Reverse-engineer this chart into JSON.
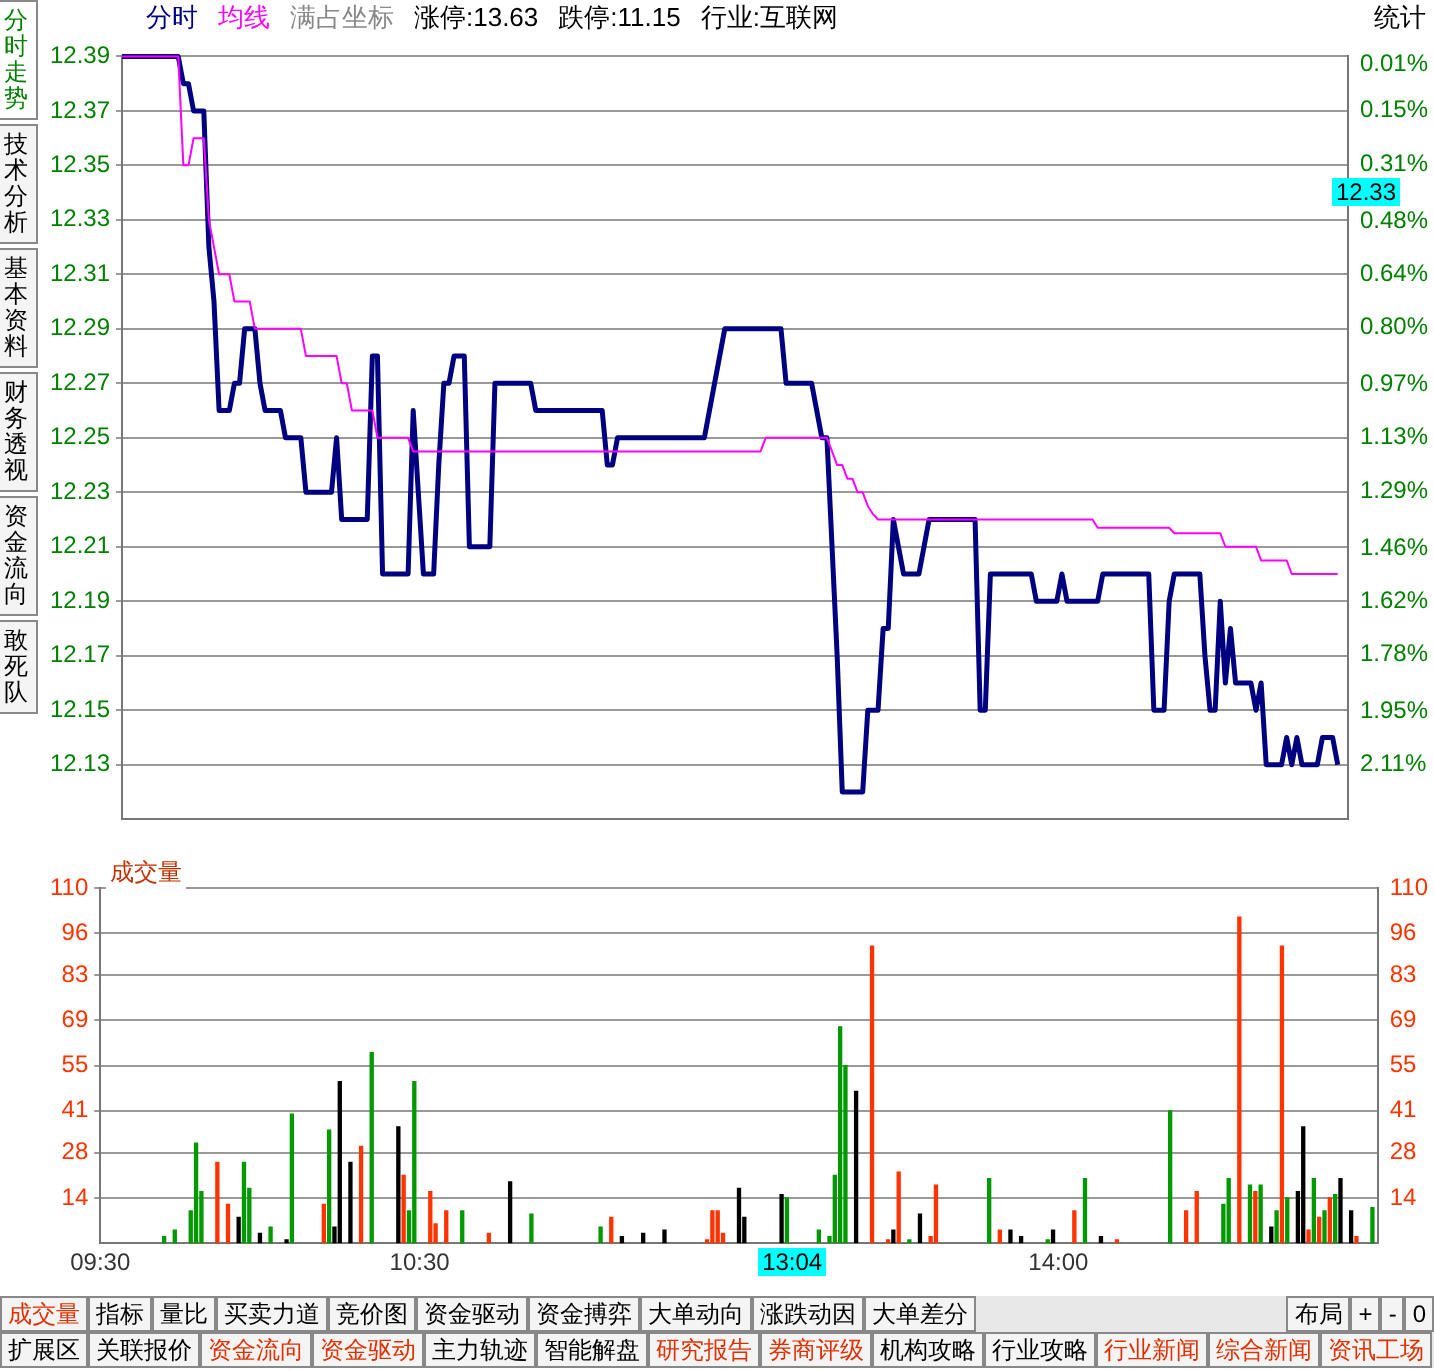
{
  "chart_data": [
    {
      "type": "line",
      "legend": "top left",
      "grid": "y",
      "categories": [
        null,
        null,
        null,
        null,
        null,
        null,
        null,
        null,
        null,
        null,
        null,
        null,
        null,
        null,
        null,
        null,
        null,
        null,
        null,
        null,
        null,
        null,
        null,
        null,
        null,
        null,
        null,
        null,
        null,
        null,
        null,
        null,
        null,
        null,
        null,
        null,
        null,
        null,
        null,
        null,
        null,
        null,
        null,
        null,
        null,
        null,
        null,
        null,
        null,
        null,
        null,
        null,
        null,
        null,
        null,
        null,
        null,
        null,
        null,
        null,
        null,
        null,
        null,
        null,
        null,
        null,
        null,
        null,
        null,
        null,
        null,
        null,
        null,
        null,
        null,
        null,
        null,
        null,
        null,
        null,
        null,
        null,
        null,
        null,
        null,
        null,
        null,
        null,
        null,
        null,
        null,
        null,
        null,
        null,
        null,
        null,
        null,
        null,
        null,
        null,
        null,
        null,
        null,
        null,
        null,
        null,
        null,
        null,
        null,
        null,
        null,
        null,
        null,
        null,
        null,
        null,
        null,
        null,
        null,
        null,
        null,
        null,
        null,
        null,
        null,
        null,
        null,
        null,
        null,
        null,
        null,
        null,
        null,
        null,
        null,
        null,
        null,
        null,
        null,
        null,
        null,
        null,
        null,
        null,
        null,
        null,
        null,
        null,
        null,
        null,
        null,
        null,
        null,
        null,
        null,
        null,
        null,
        null,
        null,
        null,
        null,
        null,
        null,
        null,
        null,
        null,
        null,
        null,
        null,
        null,
        null,
        null,
        null,
        null,
        null,
        null,
        null,
        null,
        null,
        null,
        null,
        null,
        null,
        null,
        null,
        null,
        null,
        null,
        null,
        null,
        null,
        null,
        null,
        null,
        null,
        null,
        null,
        null,
        null,
        null,
        null,
        null,
        null,
        null,
        null,
        null,
        null,
        null,
        null,
        null,
        null,
        null,
        null,
        null,
        null,
        null,
        null,
        null,
        null,
        null,
        null,
        null,
        null,
        null,
        null,
        null,
        null,
        null,
        null,
        null,
        null,
        null,
        null,
        null,
        null,
        null,
        null,
        null,
        null,
        null,
        null
      ],
      "series": [
        {
          "name": "分时",
          "color": "#000080",
          "values": [
            12.39,
            12.39,
            12.39,
            12.39,
            12.39,
            12.39,
            12.39,
            12.39,
            12.39,
            12.39,
            12.39,
            12.39,
            12.38,
            12.38,
            12.37,
            12.37,
            12.37,
            12.32,
            12.3,
            12.26,
            12.26,
            12.26,
            12.27,
            12.27,
            12.29,
            12.29,
            12.29,
            12.27,
            12.26,
            12.26,
            12.26,
            12.26,
            12.25,
            12.25,
            12.25,
            12.25,
            12.23,
            12.23,
            12.23,
            12.23,
            12.23,
            12.23,
            12.25,
            12.22,
            12.22,
            12.22,
            12.22,
            12.22,
            12.22,
            12.28,
            12.28,
            12.2,
            12.2,
            12.2,
            12.2,
            12.2,
            12.2,
            12.26,
            12.23,
            12.2,
            12.2,
            12.2,
            12.24,
            12.27,
            12.27,
            12.28,
            12.28,
            12.28,
            12.21,
            12.21,
            12.21,
            12.21,
            12.21,
            12.27,
            12.27,
            12.27,
            12.27,
            12.27,
            12.27,
            12.27,
            12.27,
            12.26,
            12.26,
            12.26,
            12.26,
            12.26,
            12.26,
            12.26,
            12.26,
            12.26,
            12.26,
            12.26,
            12.26,
            12.26,
            12.26,
            12.24,
            12.24,
            12.25,
            12.25,
            12.25,
            12.25,
            12.25,
            12.25,
            12.25,
            12.25,
            12.25,
            12.25,
            12.25,
            12.25,
            12.25,
            12.25,
            12.25,
            12.25,
            12.25,
            12.25,
            12.26,
            12.27,
            12.28,
            12.29,
            12.29,
            12.29,
            12.29,
            12.29,
            12.29,
            12.29,
            12.29,
            12.29,
            12.29,
            12.29,
            12.29,
            12.27,
            12.27,
            12.27,
            12.27,
            12.27,
            12.27,
            12.26,
            12.25,
            12.25,
            12.21,
            12.17,
            12.12,
            12.12,
            12.12,
            12.12,
            12.12,
            12.15,
            12.15,
            12.15,
            12.18,
            12.18,
            12.22,
            12.21,
            12.2,
            12.2,
            12.2,
            12.2,
            12.21,
            12.22,
            12.22,
            12.22,
            12.22,
            12.22,
            12.22,
            12.22,
            12.22,
            12.22,
            12.22,
            12.15,
            12.15,
            12.2,
            12.2,
            12.2,
            12.2,
            12.2,
            12.2,
            12.2,
            12.2,
            12.2,
            12.19,
            12.19,
            12.19,
            12.19,
            12.19,
            12.2,
            12.19,
            12.19,
            12.19,
            12.19,
            12.19,
            12.19,
            12.19,
            12.2,
            12.2,
            12.2,
            12.2,
            12.2,
            12.2,
            12.2,
            12.2,
            12.2,
            12.2,
            12.15,
            12.15,
            12.15,
            12.19,
            12.2,
            12.2,
            12.2,
            12.2,
            12.2,
            12.2,
            12.17,
            12.15,
            12.15,
            12.19,
            12.16,
            12.18,
            12.16,
            12.16,
            12.16,
            12.16,
            12.15,
            12.16,
            12.13,
            12.13,
            12.13,
            12.13,
            12.14,
            12.13,
            12.14,
            12.13,
            12.13,
            12.13,
            12.13,
            12.14,
            12.14,
            12.14,
            12.13,
            null,
            null
          ]
        },
        {
          "name": "均线",
          "color": "#ff00ff",
          "values": [
            12.39,
            12.39,
            12.39,
            12.39,
            12.39,
            12.39,
            12.39,
            12.39,
            12.39,
            12.39,
            12.39,
            12.39,
            12.35,
            12.35,
            12.36,
            12.36,
            12.36,
            12.33,
            12.32,
            12.31,
            12.31,
            12.31,
            12.3,
            12.3,
            12.3,
            12.3,
            12.29,
            12.29,
            12.29,
            12.29,
            12.29,
            12.29,
            12.29,
            12.29,
            12.29,
            12.29,
            12.28,
            12.28,
            12.28,
            12.28,
            12.28,
            12.28,
            12.28,
            12.27,
            12.27,
            12.26,
            12.26,
            12.26,
            12.26,
            12.26,
            12.25,
            12.25,
            12.25,
            12.25,
            12.25,
            12.25,
            12.25,
            12.245,
            12.245,
            12.245,
            12.245,
            12.245,
            12.245,
            12.245,
            12.245,
            12.245,
            12.245,
            12.245,
            12.245,
            12.245,
            12.245,
            12.245,
            12.245,
            12.245,
            12.245,
            12.245,
            12.245,
            12.245,
            12.245,
            12.245,
            12.245,
            12.245,
            12.245,
            12.245,
            12.245,
            12.245,
            12.245,
            12.245,
            12.245,
            12.245,
            12.245,
            12.245,
            12.245,
            12.245,
            12.245,
            12.245,
            12.245,
            12.245,
            12.245,
            12.245,
            12.245,
            12.245,
            12.245,
            12.245,
            12.245,
            12.245,
            12.245,
            12.245,
            12.245,
            12.245,
            12.245,
            12.245,
            12.245,
            12.245,
            12.245,
            12.245,
            12.245,
            12.245,
            12.245,
            12.245,
            12.245,
            12.245,
            12.245,
            12.245,
            12.245,
            12.245,
            12.25,
            12.25,
            12.25,
            12.25,
            12.25,
            12.25,
            12.25,
            12.25,
            12.25,
            12.25,
            12.25,
            12.25,
            12.25,
            12.245,
            12.24,
            12.24,
            12.235,
            12.235,
            12.23,
            12.23,
            12.225,
            12.222,
            12.22,
            12.22,
            12.22,
            12.22,
            12.22,
            12.22,
            12.22,
            12.22,
            12.22,
            12.22,
            12.22,
            12.22,
            12.22,
            12.22,
            12.22,
            12.22,
            12.22,
            12.22,
            12.22,
            12.22,
            12.22,
            12.22,
            12.22,
            12.22,
            12.22,
            12.22,
            12.22,
            12.22,
            12.22,
            12.22,
            12.22,
            12.22,
            12.22,
            12.22,
            12.22,
            12.22,
            12.22,
            12.22,
            12.22,
            12.22,
            12.22,
            12.22,
            12.22,
            12.217,
            12.217,
            12.217,
            12.217,
            12.217,
            12.217,
            12.217,
            12.217,
            12.217,
            12.217,
            12.217,
            12.217,
            12.217,
            12.217,
            12.217,
            12.215,
            12.215,
            12.215,
            12.215,
            12.215,
            12.215,
            12.215,
            12.215,
            12.215,
            12.215,
            12.21,
            12.21,
            12.21,
            12.21,
            12.21,
            12.21,
            12.21,
            12.205,
            12.205,
            12.205,
            12.205,
            12.205,
            12.205,
            12.2,
            12.2,
            12.2,
            12.2,
            12.2,
            12.2,
            12.2,
            12.2,
            12.2,
            12.2,
            null,
            null
          ]
        }
      ],
      "ylim": [
        12.11,
        12.39
      ],
      "yticks": [
        12.13,
        12.15,
        12.17,
        12.19,
        12.21,
        12.23,
        12.25,
        12.27,
        12.29,
        12.31,
        12.33,
        12.35,
        12.37,
        12.39
      ],
      "y2lim": [
        2.273,
        -0.013
      ],
      "y2ticks": [
        {
          "value": 0.01,
          "label": "0.01%"
        },
        {
          "value": 0.15,
          "label": "0.15%"
        },
        {
          "value": 0.31,
          "label": "0.31%"
        },
        {
          "value": 0.48,
          "label": "0.48%"
        },
        {
          "value": 0.64,
          "label": "0.64%"
        },
        {
          "value": 0.8,
          "label": "0.80%"
        },
        {
          "value": 0.97,
          "label": "0.97%"
        },
        {
          "value": 1.13,
          "label": "1.13%"
        },
        {
          "value": 1.29,
          "label": "1.29%"
        },
        {
          "value": 1.46,
          "label": "1.46%"
        },
        {
          "value": 1.62,
          "label": "1.62%"
        },
        {
          "value": 1.78,
          "label": "1.78%"
        },
        {
          "value": 1.95,
          "label": "1.95%"
        },
        {
          "value": 2.11,
          "label": "2.11%"
        }
      ],
      "annotations": [
        "12.33",
        "满占坐标",
        "涨停:13.63",
        "跌停:11.15",
        "行业:互联网",
        "统计"
      ]
    },
    {
      "type": "bar",
      "title": "成交量",
      "grid": "y",
      "categories": [
        "09:30",
        null,
        null,
        null,
        null,
        null,
        null,
        null,
        null,
        null,
        null,
        null,
        null,
        null,
        null,
        null,
        null,
        null,
        null,
        null,
        null,
        null,
        null,
        null,
        null,
        null,
        null,
        null,
        null,
        null,
        null,
        null,
        null,
        null,
        null,
        null,
        null,
        null,
        null,
        null,
        null,
        null,
        null,
        null,
        null,
        null,
        null,
        null,
        null,
        null,
        null,
        null,
        null,
        null,
        null,
        null,
        null,
        null,
        null,
        null,
        "10:30",
        null,
        null,
        null,
        null,
        null,
        null,
        null,
        null,
        null,
        null,
        null,
        null,
        null,
        null,
        null,
        null,
        null,
        null,
        null,
        null,
        null,
        null,
        null,
        null,
        null,
        null,
        null,
        null,
        null,
        null,
        null,
        null,
        null,
        null,
        null,
        null,
        null,
        null,
        null,
        null,
        null,
        null,
        null,
        null,
        null,
        null,
        null,
        null,
        null,
        null,
        null,
        null,
        null,
        null,
        null,
        null,
        null,
        null,
        null,
        null,
        null,
        null,
        null,
        null,
        null,
        null,
        null,
        null,
        null,
        null,
        null,
        null,
        null,
        null,
        null,
        null,
        null,
        null,
        null,
        null,
        null,
        null,
        null,
        null,
        null,
        null,
        null,
        null,
        null,
        null,
        null,
        null,
        null,
        null,
        null,
        null,
        null,
        null,
        null,
        null,
        null,
        null,
        null,
        null,
        null,
        null,
        null,
        null,
        null,
        null,
        null,
        null,
        null,
        null,
        null,
        null,
        null,
        null,
        null,
        "14:00",
        null,
        null,
        null,
        null,
        null,
        null,
        null,
        null,
        null,
        null,
        null,
        null,
        null,
        null,
        null,
        null,
        null,
        null,
        null,
        null,
        null,
        null,
        null,
        null,
        null,
        null,
        null,
        null,
        null,
        null,
        null,
        null,
        null,
        null,
        null,
        null,
        null,
        null,
        null,
        null,
        null,
        null,
        null,
        null,
        null,
        null,
        null,
        null,
        null,
        null,
        null,
        null,
        null,
        null,
        null,
        null,
        null,
        null,
        null,
        null
      ],
      "values": [
        null,
        null,
        null,
        null,
        null,
        null,
        null,
        null,
        null,
        null,
        null,
        null,
        2,
        null,
        4,
        null,
        null,
        10,
        31,
        16,
        null,
        null,
        25,
        null,
        12,
        null,
        8,
        25,
        17,
        null,
        3,
        null,
        5,
        null,
        null,
        1,
        40,
        null,
        null,
        null,
        null,
        null,
        12,
        35,
        5,
        50,
        null,
        25,
        null,
        30,
        null,
        59,
        null,
        null,
        null,
        null,
        36,
        21,
        10,
        50,
        null,
        null,
        16,
        6,
        null,
        10,
        null,
        null,
        10,
        null,
        null,
        null,
        null,
        3,
        null,
        null,
        null,
        19,
        null,
        null,
        null,
        9,
        null,
        null,
        null,
        null,
        null,
        null,
        null,
        null,
        null,
        null,
        null,
        null,
        5,
        null,
        8,
        null,
        2,
        null,
        null,
        null,
        3,
        null,
        null,
        null,
        4,
        null,
        null,
        null,
        null,
        null,
        null,
        null,
        1,
        10,
        10,
        3,
        null,
        null,
        17,
        8,
        null,
        null,
        null,
        null,
        null,
        null,
        15,
        14,
        null,
        null,
        null,
        null,
        null,
        4,
        null,
        2,
        21,
        67,
        55,
        null,
        47,
        null,
        null,
        92,
        null,
        null,
        1,
        4,
        22,
        null,
        1,
        null,
        9,
        null,
        2,
        18,
        null,
        null,
        null,
        null,
        null,
        null,
        null,
        null,
        null,
        20,
        null,
        4,
        null,
        4,
        null,
        2,
        null,
        null,
        null,
        null,
        1,
        4,
        null,
        null,
        null,
        10,
        null,
        20,
        null,
        null,
        2,
        null,
        null,
        1,
        null,
        null,
        null,
        null,
        null,
        null,
        null,
        null,
        null,
        41,
        null,
        null,
        10,
        null,
        16,
        null,
        null,
        null,
        null,
        12,
        20,
        null,
        101,
        null,
        18,
        16,
        18,
        null,
        5,
        10,
        92,
        14,
        null,
        16,
        36,
        4,
        20,
        8,
        10,
        14,
        15,
        20,
        null,
        10,
        2,
        null,
        null,
        11,
        null
      ],
      "colors": [
        null,
        null,
        null,
        null,
        null,
        null,
        null,
        null,
        null,
        null,
        null,
        null,
        "#009900",
        null,
        "#009900",
        null,
        null,
        "#009900",
        "#009900",
        "#009900",
        null,
        null,
        "#ff3300",
        null,
        "#ff3300",
        null,
        "#000000",
        "#009900",
        "#009900",
        null,
        "#000000",
        null,
        "#009900",
        null,
        null,
        "#000000",
        "#009900",
        null,
        null,
        null,
        null,
        null,
        "#ff3300",
        "#009900",
        "#000000",
        "#000000",
        null,
        "#000000",
        null,
        "#ff3300",
        null,
        "#009900",
        null,
        null,
        null,
        null,
        "#000000",
        "#ff3300",
        "#009900",
        "#009900",
        null,
        null,
        "#ff3300",
        "#ff3300",
        null,
        "#ff3300",
        null,
        null,
        "#009900",
        null,
        null,
        null,
        null,
        "#ff3300",
        null,
        null,
        null,
        "#000000",
        null,
        null,
        null,
        "#009900",
        null,
        null,
        null,
        null,
        null,
        null,
        null,
        null,
        null,
        null,
        null,
        null,
        "#009900",
        null,
        "#ff3300",
        null,
        "#000000",
        null,
        null,
        null,
        "#000000",
        null,
        null,
        null,
        "#000000",
        null,
        null,
        null,
        null,
        null,
        null,
        null,
        "#ff3300",
        "#ff3300",
        "#ff3300",
        "#ff3300",
        null,
        null,
        "#000000",
        "#000000",
        null,
        null,
        null,
        null,
        null,
        null,
        "#000000",
        "#009900",
        null,
        null,
        null,
        null,
        null,
        "#009900",
        null,
        "#009900",
        "#009900",
        "#009900",
        "#009900",
        null,
        "#000000",
        null,
        null,
        "#ff3300",
        null,
        null,
        "#ff3300",
        "#000000",
        "#ff3300",
        null,
        "#009900",
        null,
        "#000000",
        null,
        "#ff3300",
        "#ff3300",
        null,
        null,
        null,
        null,
        null,
        null,
        null,
        null,
        null,
        "#009900",
        null,
        "#ff3300",
        null,
        "#000000",
        null,
        "#000000",
        null,
        null,
        null,
        null,
        "#009900",
        "#000000",
        null,
        null,
        null,
        "#ff3300",
        null,
        "#009900",
        null,
        null,
        "#000000",
        null,
        null,
        "#ff3300",
        null,
        null,
        null,
        null,
        null,
        null,
        null,
        null,
        null,
        "#009900",
        null,
        null,
        "#ff3300",
        null,
        "#ff3300",
        null,
        null,
        null,
        null,
        "#009900",
        "#009900",
        null,
        "#ff3300",
        null,
        "#009900",
        "#ff3300",
        "#009900",
        null,
        "#000000",
        "#009900",
        "#ff3300",
        "#009900",
        null,
        "#000000",
        "#000000",
        "#ff3300",
        "#009900",
        "#ff3300",
        "#009900",
        "#ff3300",
        "#009900",
        "#000000",
        null,
        "#000000",
        "#ff3300",
        null,
        null,
        "#009900",
        null
      ],
      "ylim": [
        0,
        110
      ],
      "yticks": [
        14,
        28,
        41,
        55,
        69,
        83,
        96,
        110
      ],
      "y2lim": [
        0,
        110
      ],
      "y2ticks": [
        14,
        28,
        41,
        55,
        69,
        83,
        96,
        110
      ],
      "annotations": [
        "13:04"
      ]
    },
    {
      "type": "other",
      "annotations": [
        "分时走势",
        "技术分析",
        "基本资料",
        "财务透视",
        "资金流向",
        "敢死队",
        "成交量",
        "指标",
        "量比",
        "买卖力道",
        "竞价图",
        "资金驱动",
        "资金搏弈",
        "大单动向",
        "涨跌动因",
        "大单差分",
        "布局",
        "+",
        "-",
        "0",
        "扩展区",
        "关联报价",
        "资金流向",
        "资金驱动",
        "主力轨迹",
        "智能解盘",
        "研究报告",
        "券商评级",
        "机构攻略",
        "行业攻略",
        "行业新闻",
        "综合新闻",
        "资讯工场"
      ]
    }
  ]
}
